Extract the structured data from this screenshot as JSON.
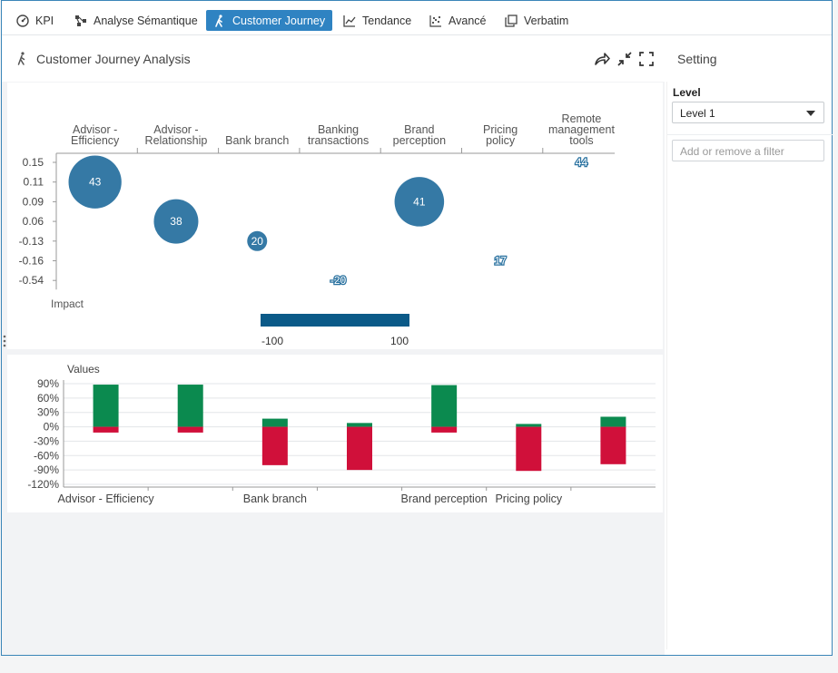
{
  "tabs": [
    {
      "label": "KPI",
      "icon": "dashboard-icon",
      "active": false
    },
    {
      "label": "Analyse Sémantique",
      "icon": "network-icon",
      "active": false
    },
    {
      "label": "Customer Journey",
      "icon": "walking-person-icon",
      "active": true
    },
    {
      "label": "Tendance",
      "icon": "line-chart-icon",
      "active": false
    },
    {
      "label": "Avancé",
      "icon": "scatter-icon",
      "active": false
    },
    {
      "label": "Verbatim",
      "icon": "copy-icon",
      "active": false
    }
  ],
  "header": {
    "title": "Customer Journey Analysis",
    "icons": [
      "share-icon",
      "compress-icon",
      "expand-icon"
    ]
  },
  "settings": {
    "title": "Setting",
    "level_label": "Level",
    "level_value": "Level 1",
    "filter_placeholder": "Add or remove a filter"
  },
  "colors": {
    "accent": "#2f83c2",
    "bubble": "#2a72a0",
    "positive": "#0b8a4f",
    "negative": "#d0103a",
    "legend_bar": "#0b5a88"
  },
  "chart_data": [
    {
      "type": "scatter",
      "subtype": "bubble",
      "categories": [
        "Advisor - Efficiency",
        "Advisor - Relationship",
        "Bank branch",
        "Banking transactions",
        "Brand perception",
        "Pricing policy",
        "Remote management tools"
      ],
      "y_ticks": [
        "0.15",
        "0.11",
        "0.09",
        "0.06",
        "-0.13",
        "-0.16",
        "-0.54"
      ],
      "ylabel": "Impact",
      "points": [
        {
          "category": "Advisor - Efficiency",
          "y": "0.11",
          "value": 43
        },
        {
          "category": "Advisor - Relationship",
          "y": "0.06",
          "value": 38
        },
        {
          "category": "Bank branch",
          "y": "-0.13",
          "value": 20
        },
        {
          "category": "Banking transactions",
          "y": "-0.54",
          "value": -20
        },
        {
          "category": "Brand perception",
          "y": "0.09",
          "value": 41
        },
        {
          "category": "Pricing policy",
          "y": "-0.16",
          "value": 17
        },
        {
          "category": "Remote management tools",
          "y": "0.15",
          "value": 44
        }
      ],
      "legend": {
        "min": "-100",
        "max": "100"
      }
    },
    {
      "type": "bar",
      "stacked": true,
      "title": "Values",
      "categories": [
        "Advisor - Efficiency",
        "Advisor - Relationship",
        "Bank branch",
        "Banking transactions",
        "Brand perception",
        "Pricing policy",
        "Remote management tools"
      ],
      "x_tick_labels": [
        "Advisor - Efficiency",
        "Bank branch",
        "Brand perception",
        "Pricing policy"
      ],
      "series": [
        {
          "values": [
            88,
            88,
            17,
            8,
            87,
            6,
            21
          ]
        },
        {
          "values": [
            -12,
            -12,
            -80,
            -90,
            -12,
            -92,
            -78
          ]
        }
      ],
      "y_ticks": [
        "90%",
        "60%",
        "30%",
        "0%",
        "-30%",
        "-60%",
        "-90%",
        "-120%"
      ],
      "ylim": [
        -120,
        90
      ],
      "grid": true
    }
  ]
}
